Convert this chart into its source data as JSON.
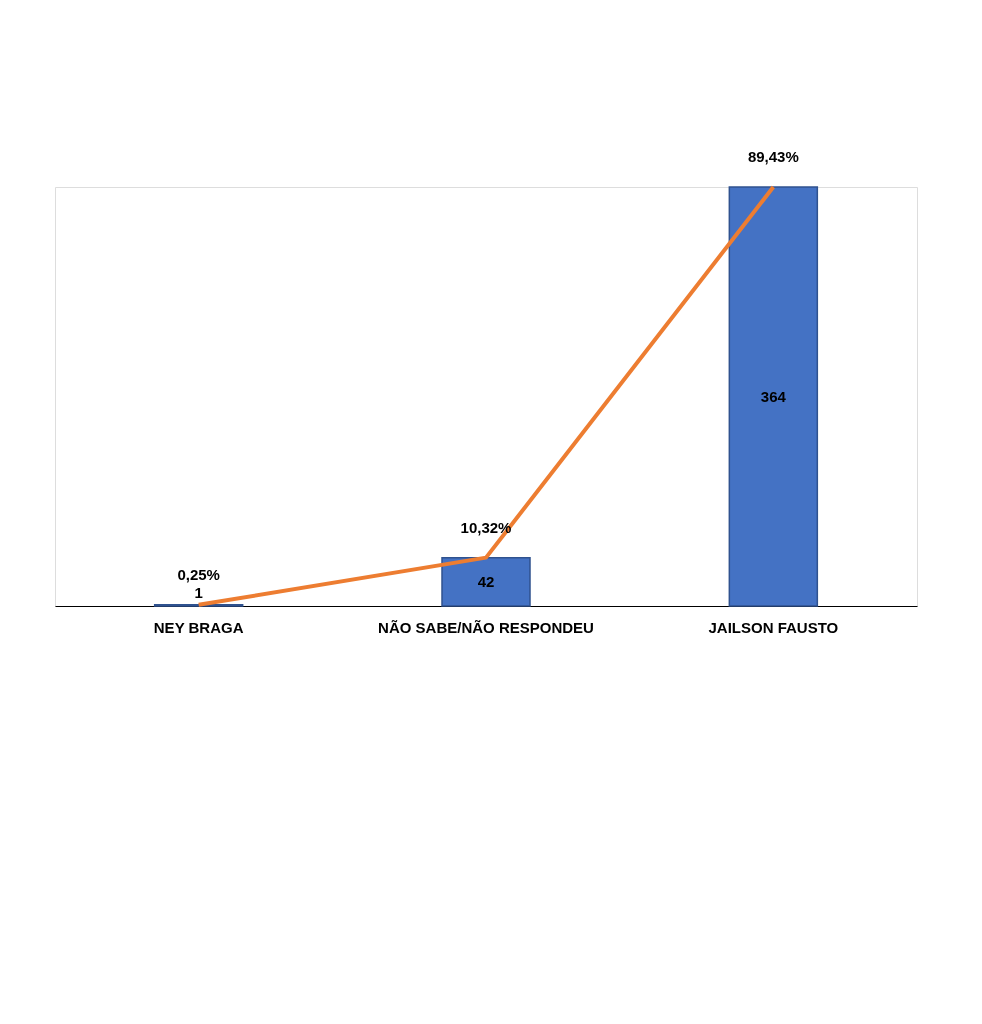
{
  "chart_data": {
    "type": "bar",
    "categories": [
      "NEY BRAGA",
      "NÃO SABE/NÃO RESPONDEU",
      "JAILSON FAUSTO"
    ],
    "series": [
      {
        "color": "#4472c4",
        "values": [
          1,
          42,
          364
        ],
        "value_labels": [
          "1",
          "42",
          "364"
        ]
      },
      {
        "type": "line",
        "axis": "y2",
        "color": "#ed7d31",
        "values": [
          0.25,
          10.32,
          89.43
        ],
        "value_labels": [
          "0,25%",
          "10,32%",
          "89,43%"
        ]
      }
    ],
    "tick_labels": "x"
  }
}
